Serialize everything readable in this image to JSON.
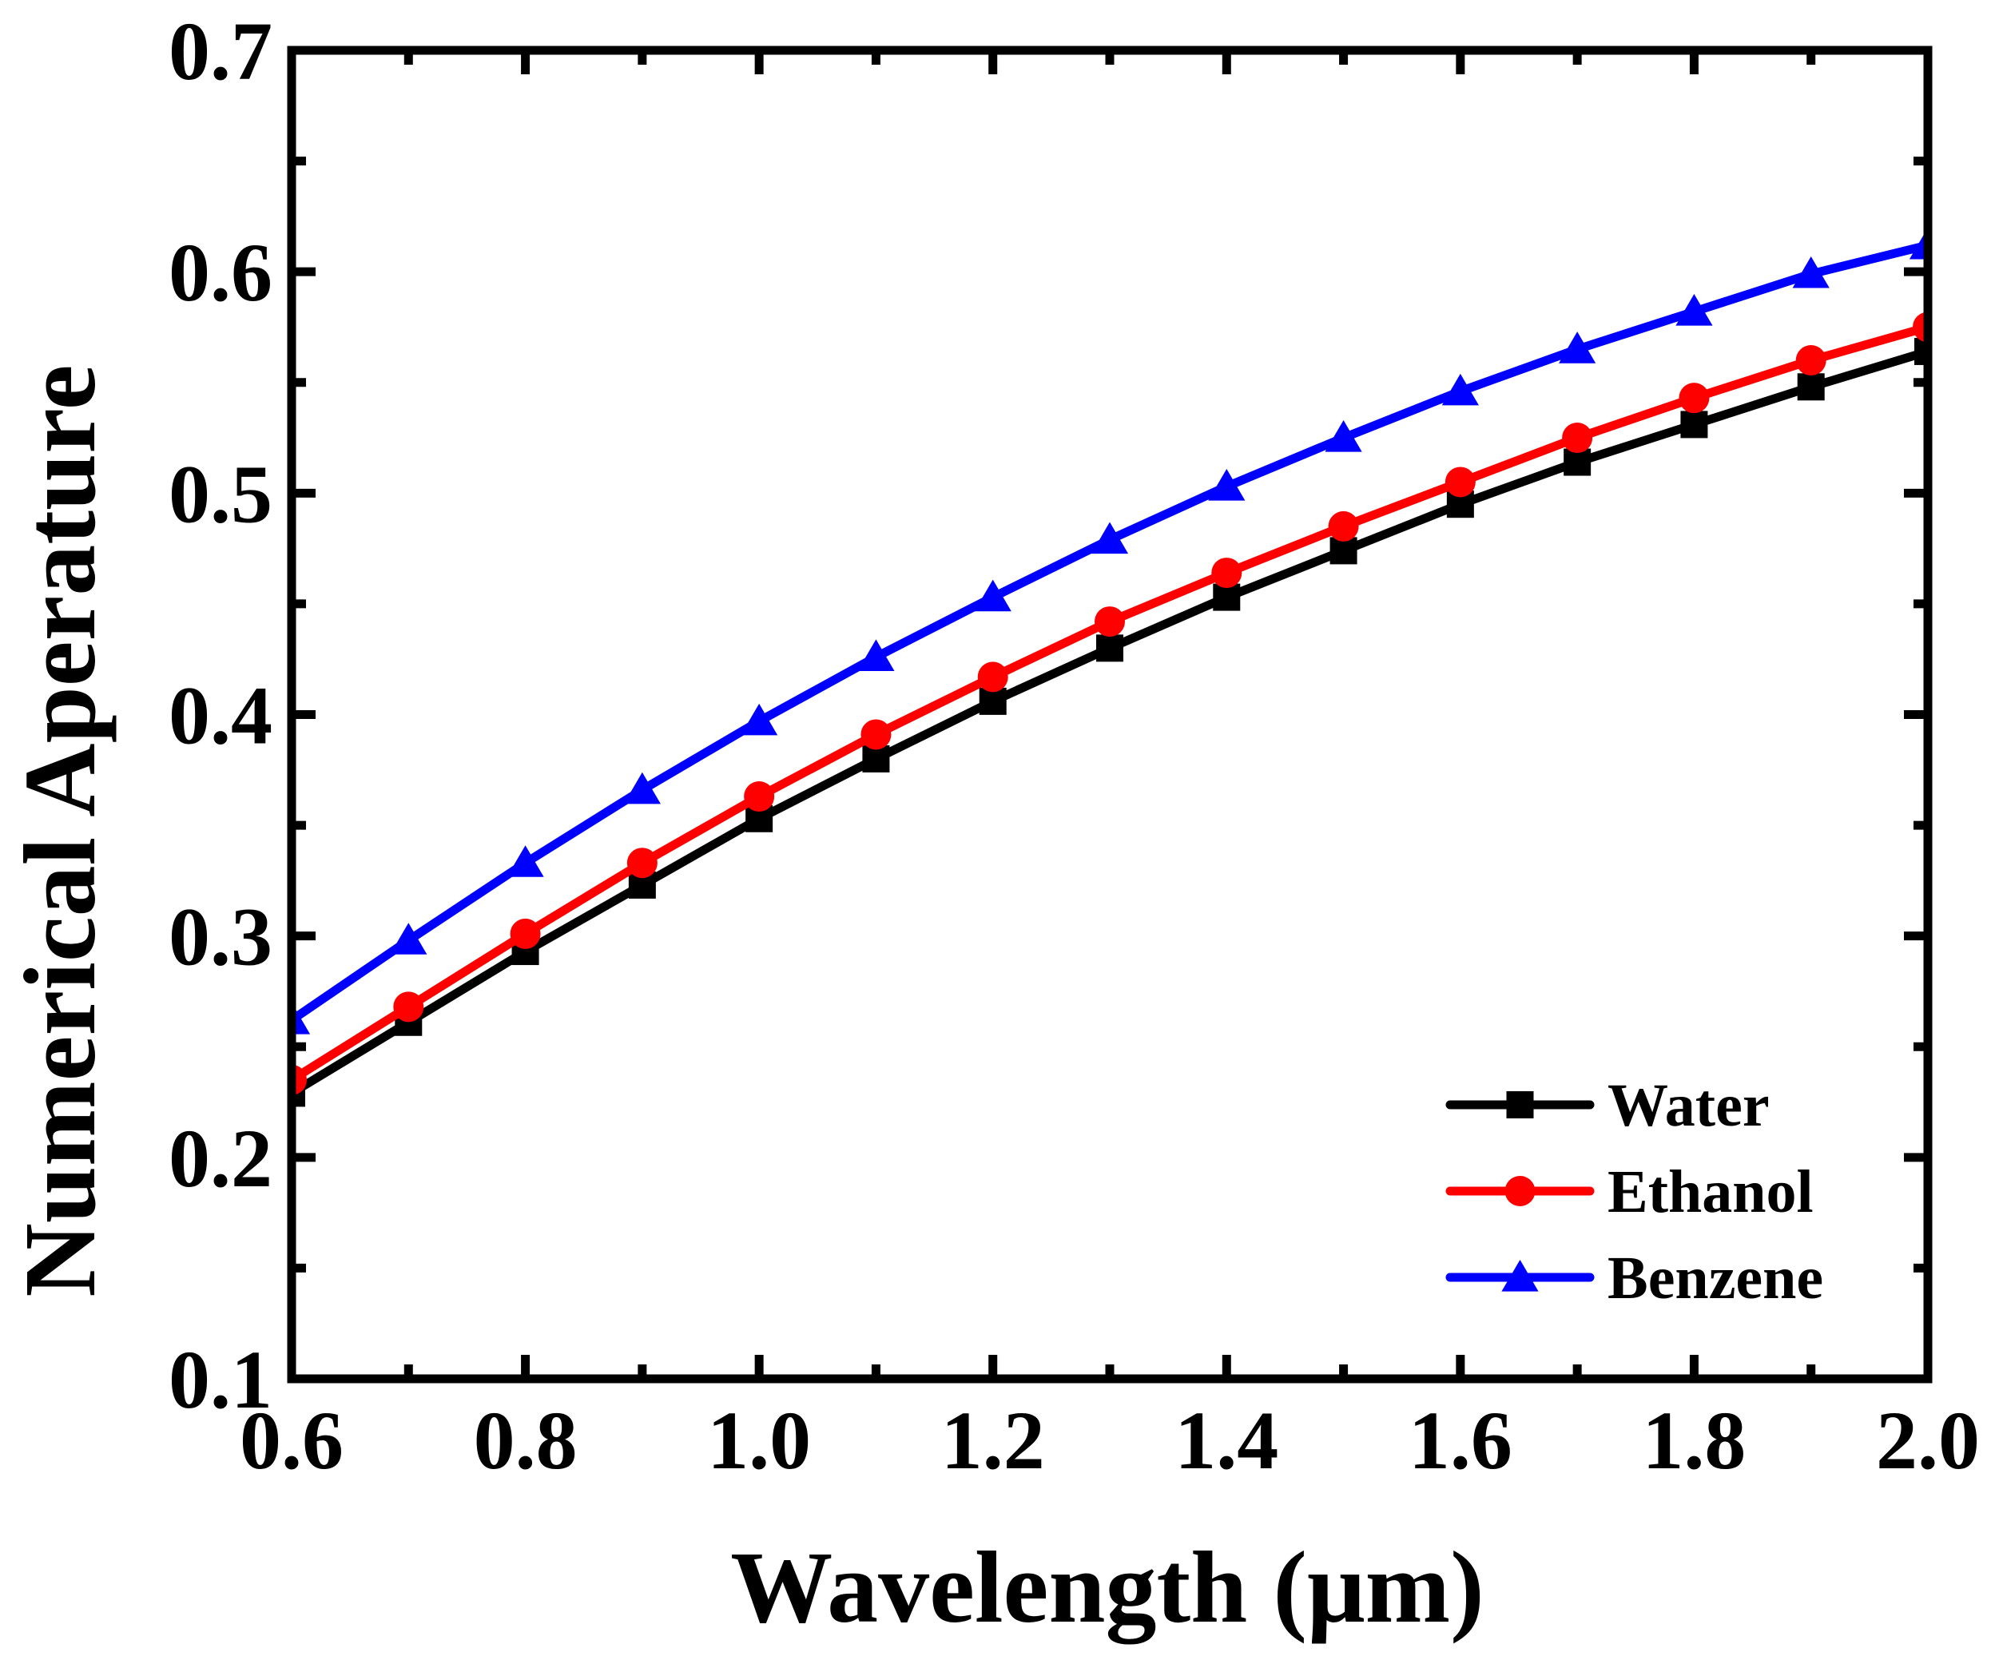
{
  "chart_data": {
    "type": "line",
    "title": "",
    "xlabel": "Wavelength (μm)",
    "ylabel": "Numerical Aperature",
    "xlim": [
      0.6,
      2.0
    ],
    "ylim": [
      0.1,
      0.7
    ],
    "x": [
      0.6,
      0.7,
      0.8,
      0.9,
      1.0,
      1.1,
      1.2,
      1.3,
      1.4,
      1.5,
      1.6,
      1.7,
      1.8,
      1.9,
      2.0
    ],
    "xticks": [
      "0.6",
      "0.8",
      "1.0",
      "1.2",
      "1.4",
      "1.6",
      "1.8",
      "2.0"
    ],
    "yticks": [
      "0.1",
      "0.2",
      "0.3",
      "0.4",
      "0.5",
      "0.6",
      "0.7"
    ],
    "grid": false,
    "legend_position": "bottom-right",
    "series": [
      {
        "name": "Water",
        "color": "#000000",
        "marker": "square",
        "values": [
          0.229,
          0.261,
          0.293,
          0.323,
          0.353,
          0.38,
          0.406,
          0.43,
          0.453,
          0.474,
          0.495,
          0.514,
          0.531,
          0.548,
          0.564
        ]
      },
      {
        "name": "Ethanol",
        "color": "#ff0000",
        "marker": "circle",
        "values": [
          0.235,
          0.268,
          0.301,
          0.333,
          0.363,
          0.391,
          0.417,
          0.442,
          0.464,
          0.485,
          0.505,
          0.525,
          0.543,
          0.56,
          0.575
        ]
      },
      {
        "name": "Benzene",
        "color": "#0000ff",
        "marker": "triangle",
        "values": [
          0.262,
          0.298,
          0.333,
          0.366,
          0.397,
          0.426,
          0.453,
          0.479,
          0.503,
          0.525,
          0.546,
          0.565,
          0.582,
          0.599,
          0.612
        ]
      }
    ]
  }
}
